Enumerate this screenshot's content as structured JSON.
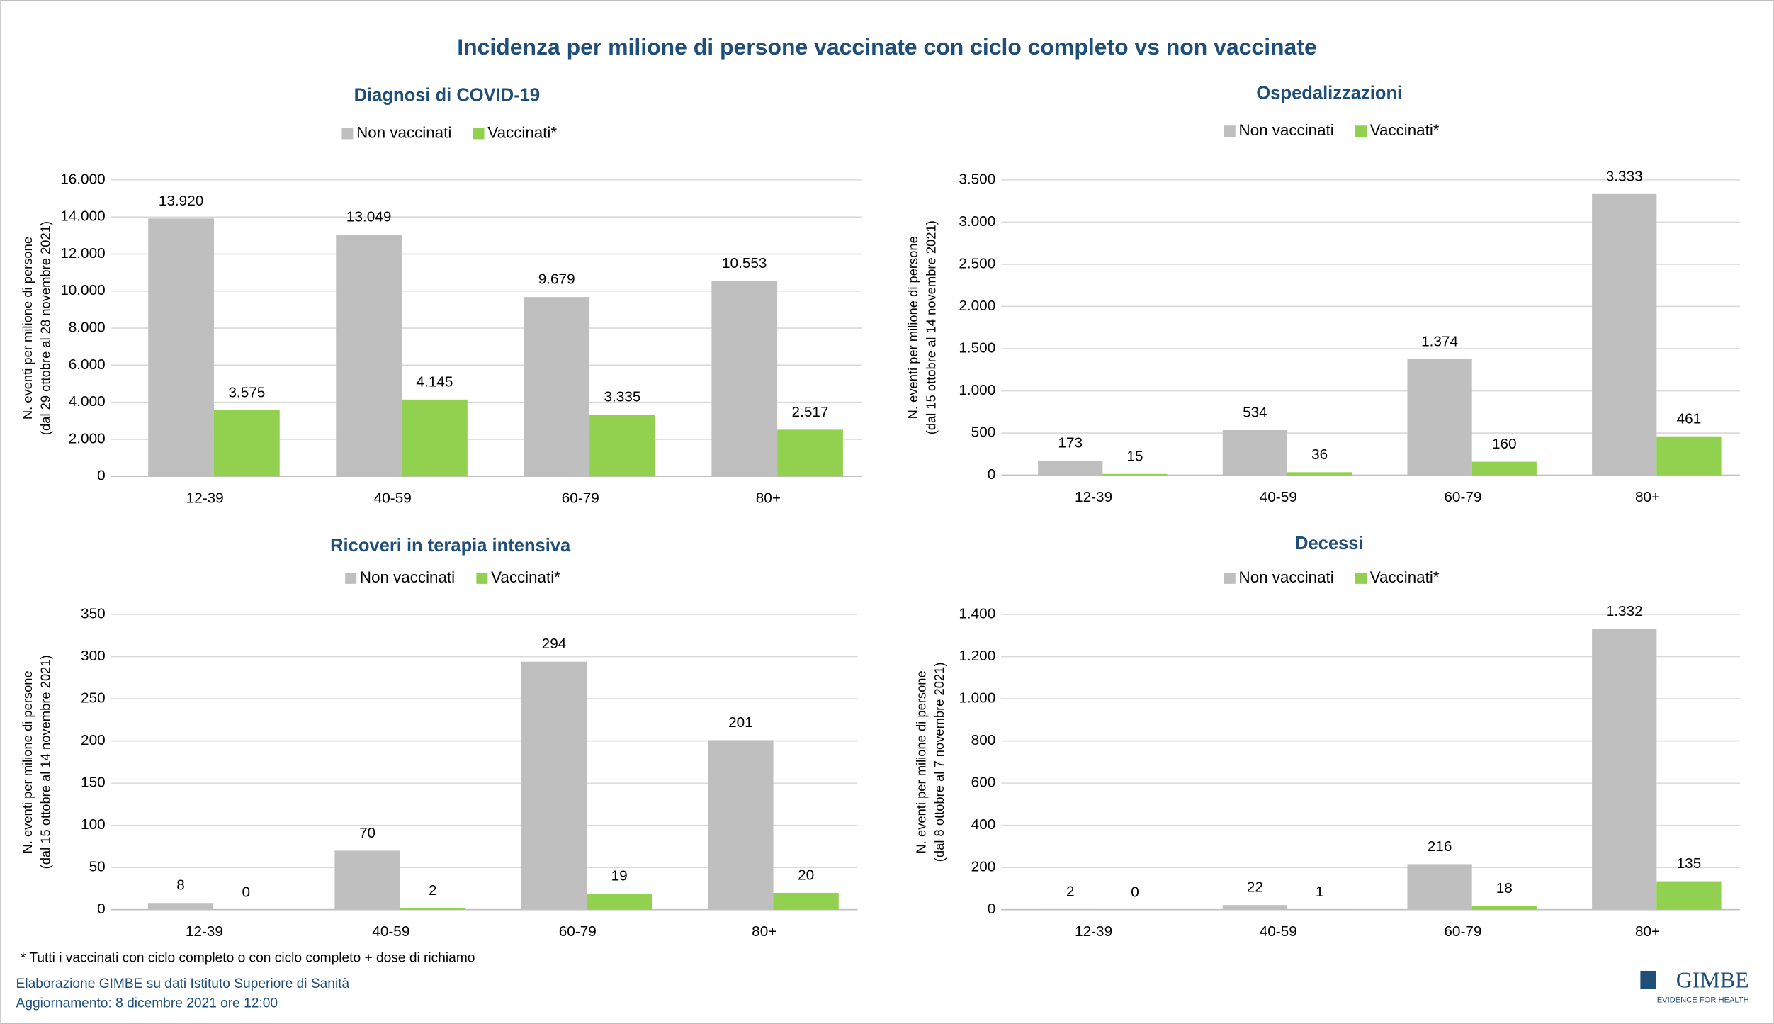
{
  "title": "Incidenza per milione di persone vaccinate con ciclo completo vs non vaccinate",
  "chart_data": [
    {
      "type": "bar",
      "title": "Diagnosi di COVID-19",
      "ylabel": [
        "N. eventi per milione di persone",
        "(dal 29 ottobre al 28 novembre 2021)"
      ],
      "categories": [
        "12-39",
        "40-59",
        "60-79",
        "80+"
      ],
      "series": [
        {
          "name": "Non vaccinati",
          "color": "#bfbfbf",
          "values": [
            13920,
            13049,
            9679,
            10553
          ],
          "value_labels": [
            "13.920",
            "13.049",
            "9.679",
            "10.553"
          ]
        },
        {
          "name": "Vaccinati*",
          "color": "#92d050",
          "values": [
            3575,
            4145,
            3335,
            2517
          ],
          "value_labels": [
            "3.575",
            "4.145",
            "3.335",
            "2.517"
          ]
        }
      ],
      "ylim": [
        0,
        16000
      ],
      "yticks": [
        0,
        {
          "value": 2000,
          "label": "2.000"
        },
        {
          "value": 4000,
          "label": "4.000"
        },
        {
          "value": 6000,
          "label": "6.000"
        },
        {
          "value": 8000,
          "label": "8.000"
        },
        {
          "value": 10000,
          "label": "10.000"
        },
        {
          "value": 12000,
          "label": "12.000"
        },
        {
          "value": 14000,
          "label": "14.000"
        },
        {
          "value": 16000,
          "label": "16.000"
        }
      ],
      "grid": true
    },
    {
      "type": "bar",
      "title": "Ospedalizzazioni",
      "ylabel": [
        "N. eventi per milione di persone",
        "(dal 15 ottobre al 14 novembre 2021)"
      ],
      "categories": [
        "12-39",
        "40-59",
        "60-79",
        "80+"
      ],
      "series": [
        {
          "name": "Non vaccinati",
          "color": "#bfbfbf",
          "values": [
            173,
            534,
            1374,
            3333
          ],
          "value_labels": [
            "173",
            "534",
            "1.374",
            "3.333"
          ]
        },
        {
          "name": "Vaccinati*",
          "color": "#92d050",
          "values": [
            15,
            36,
            160,
            461
          ]
        }
      ],
      "ylim": [
        0,
        3500
      ],
      "yticks": [
        0,
        500,
        {
          "value": 1000,
          "label": "1.000"
        },
        {
          "value": 1500,
          "label": "1.500"
        },
        {
          "value": 2000,
          "label": "2.000"
        },
        {
          "value": 2500,
          "label": "2.500"
        },
        {
          "value": 3000,
          "label": "3.000"
        },
        {
          "value": 3500,
          "label": "3.500"
        }
      ],
      "grid": true
    },
    {
      "type": "bar",
      "title": "Ricoveri in terapia intensiva",
      "ylabel": [
        "N. eventi per milione di persone",
        "(dal 15 ottobre al 14 novembre 2021)"
      ],
      "categories": [
        "12-39",
        "40-59",
        "60-79",
        "80+"
      ],
      "series": [
        {
          "name": "Non vaccinati",
          "color": "#bfbfbf",
          "values": [
            8,
            70,
            294,
            201
          ]
        },
        {
          "name": "Vaccinati*",
          "color": "#92d050",
          "values": [
            0,
            2,
            19,
            20
          ]
        }
      ],
      "ylim": [
        0,
        350
      ],
      "yticks": [
        0,
        50,
        100,
        150,
        200,
        250,
        300,
        350
      ],
      "grid": true
    },
    {
      "type": "bar",
      "title": "Decessi",
      "ylabel": [
        "N. eventi per milione di persone",
        "(dal 8 ottobre al 7 novembre 2021)"
      ],
      "categories": [
        "12-39",
        "40-59",
        "60-79",
        "80+"
      ],
      "series": [
        {
          "name": "Non vaccinati",
          "color": "#bfbfbf",
          "values": [
            2,
            22,
            216,
            1332
          ],
          "value_labels": [
            "2",
            "22",
            "216",
            "1.332"
          ]
        },
        {
          "name": "Vaccinati*",
          "color": "#92d050",
          "values": [
            0,
            1,
            18,
            135
          ]
        }
      ],
      "ylim": [
        0,
        1400
      ],
      "yticks": [
        0,
        200,
        400,
        600,
        800,
        {
          "value": 1000,
          "label": "1.000"
        },
        {
          "value": 1200,
          "label": "1.200"
        },
        {
          "value": 1400,
          "label": "1.400"
        }
      ],
      "grid": true
    }
  ],
  "footer": {
    "note": "* Tutti i vaccinati con ciclo completo o con ciclo completo + dose di richiamo",
    "source": "Elaborazione GIMBE su dati Istituto Superiore di Sanità",
    "updated": "Aggiornamento: 8 dicembre 2021 ore 12:00",
    "logo": "GIMBE",
    "logo_tagline": "EVIDENCE FOR HEALTH"
  }
}
